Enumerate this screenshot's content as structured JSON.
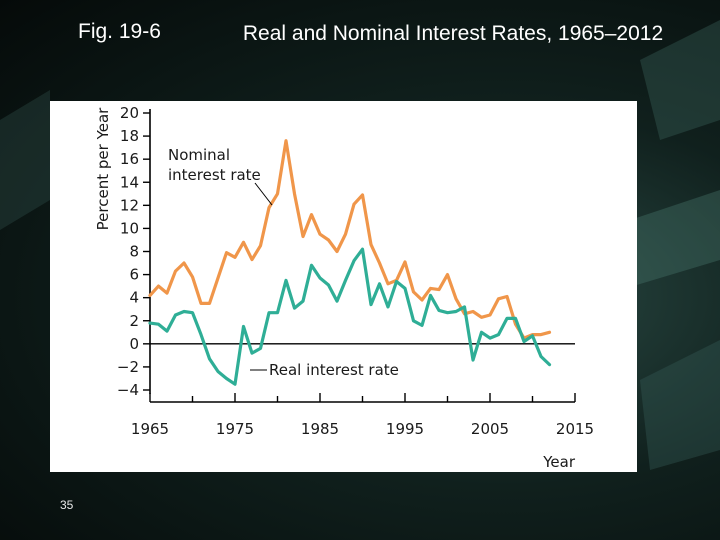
{
  "slide": {
    "fig_label": "Fig. 19-6",
    "title": "Real and Nominal Interest Rates, 1965–2012",
    "page_number": "35"
  },
  "colors": {
    "nominal": "#f0964a",
    "real": "#2fae96",
    "axis": "#000000",
    "text": "#1a1a1a"
  },
  "chart_data": {
    "type": "line",
    "title": "Real and Nominal Interest Rates, 1965–2012",
    "xlabel": "Year",
    "ylabel": "Percent per Year",
    "xlim": [
      1965,
      2015
    ],
    "ylim": [
      -4,
      20
    ],
    "x_ticks": [
      "1965",
      "1975",
      "1985",
      "1995",
      "2005",
      "2015"
    ],
    "y_ticks": [
      "20",
      "18",
      "16",
      "14",
      "12",
      "10",
      "8",
      "6",
      "4",
      "2",
      "0",
      "−2",
      "−4"
    ],
    "annotations": [
      {
        "text": "Nominal\ninterest rate",
        "series": "Nominal interest rate"
      },
      {
        "text": "Real interest rate",
        "series": "Real interest rate"
      }
    ],
    "series": [
      {
        "name": "Nominal interest rate",
        "x": [
          1965,
          1966,
          1967,
          1968,
          1969,
          1970,
          1971,
          1972,
          1973,
          1974,
          1975,
          1976,
          1977,
          1978,
          1979,
          1980,
          1981,
          1982,
          1983,
          1984,
          1985,
          1986,
          1987,
          1988,
          1989,
          1990,
          1991,
          1992,
          1993,
          1994,
          1995,
          1996,
          1997,
          1998,
          1999,
          2000,
          2001,
          2002,
          2003,
          2004,
          2005,
          2006,
          2007,
          2008,
          2009,
          2010,
          2011,
          2012
        ],
        "values": [
          4.2,
          5.0,
          4.4,
          6.3,
          7.0,
          5.8,
          3.5,
          3.5,
          5.7,
          7.9,
          7.5,
          8.8,
          7.3,
          8.5,
          11.8,
          13.0,
          17.6,
          13.0,
          9.3,
          11.2,
          9.5,
          9.0,
          8.0,
          9.5,
          12.1,
          12.9,
          8.6,
          7.0,
          5.2,
          5.5,
          7.1,
          4.5,
          3.8,
          4.8,
          4.7,
          6.0,
          3.9,
          2.6,
          2.8,
          2.3,
          2.5,
          3.9,
          4.1,
          1.7,
          0.5,
          0.8,
          0.8,
          1.0
        ]
      },
      {
        "name": "Real interest rate",
        "x": [
          1965,
          1966,
          1967,
          1968,
          1969,
          1970,
          1971,
          1972,
          1973,
          1974,
          1975,
          1976,
          1977,
          1978,
          1979,
          1980,
          1981,
          1982,
          1983,
          1984,
          1985,
          1986,
          1987,
          1988,
          1989,
          1990,
          1991,
          1992,
          1993,
          1994,
          1995,
          1996,
          1997,
          1998,
          1999,
          2000,
          2001,
          2002,
          2003,
          2004,
          2005,
          2006,
          2007,
          2008,
          2009,
          2010,
          2011,
          2012
        ],
        "values": [
          1.8,
          1.7,
          1.1,
          2.5,
          2.8,
          2.7,
          0.8,
          -1.3,
          -2.4,
          -3.0,
          -3.5,
          1.5,
          -0.8,
          -0.4,
          2.7,
          2.7,
          5.5,
          3.1,
          3.7,
          6.8,
          5.7,
          5.1,
          3.7,
          5.5,
          7.2,
          8.2,
          3.4,
          5.2,
          3.2,
          5.4,
          4.8,
          2.0,
          1.6,
          4.2,
          2.9,
          2.7,
          2.8,
          3.2,
          -1.4,
          1.0,
          0.5,
          0.8,
          2.2,
          2.2,
          0.2,
          0.7,
          -1.1,
          -1.8
        ]
      }
    ]
  }
}
